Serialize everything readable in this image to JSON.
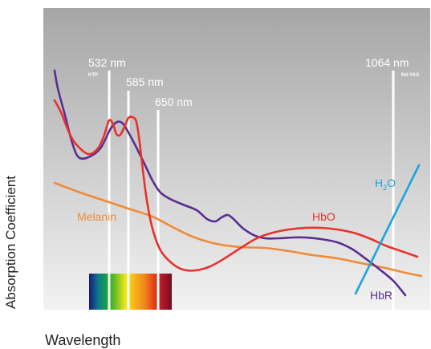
{
  "chart_data": {
    "type": "line",
    "xlabel": "Wavelength",
    "ylabel": "Absorption Coefficient",
    "axes": {
      "x_ticks": "none",
      "y_ticks": "none",
      "grid": false
    },
    "colors": {
      "background_top": "#a6a6a6",
      "background_bottom": "#f2f2f2",
      "HbO": "#e8312b",
      "HbR": "#5b2d91",
      "Melanin": "#f08a35",
      "H2O": "#1aa5dc",
      "laser_line": "#ffffff",
      "laser_label": "#ffffff"
    },
    "lasers": [
      {
        "label": "532 nm",
        "sublabel": "KTP"
      },
      {
        "label": "585 nm",
        "sublabel": ""
      },
      {
        "label": "650 nm",
        "sublabel": ""
      },
      {
        "label": "1064 nm",
        "sublabel": "Nd:YAG"
      }
    ],
    "series": [
      {
        "name": "HbR",
        "color": "#5b2d91",
        "points": [
          [
            68,
            88
          ],
          [
            72,
            110
          ],
          [
            80,
            140
          ],
          [
            90,
            178
          ],
          [
            98,
            196
          ],
          [
            110,
            196
          ],
          [
            125,
            185
          ],
          [
            138,
            160
          ],
          [
            146,
            152
          ],
          [
            153,
            154
          ],
          [
            160,
            165
          ],
          [
            168,
            180
          ],
          [
            178,
            200
          ],
          [
            190,
            225
          ],
          [
            200,
            240
          ],
          [
            212,
            248
          ],
          [
            228,
            255
          ],
          [
            245,
            262
          ],
          [
            258,
            273
          ],
          [
            268,
            276
          ],
          [
            276,
            271
          ],
          [
            284,
            268
          ],
          [
            292,
            274
          ],
          [
            302,
            284
          ],
          [
            316,
            293
          ],
          [
            330,
            297
          ],
          [
            348,
            297
          ],
          [
            365,
            296
          ],
          [
            380,
            296
          ],
          [
            400,
            298
          ],
          [
            420,
            302
          ],
          [
            438,
            310
          ],
          [
            455,
            322
          ],
          [
            472,
            335
          ],
          [
            490,
            350
          ],
          [
            505,
            368
          ]
        ]
      },
      {
        "name": "HbO",
        "color": "#e8312b",
        "points": [
          [
            68,
            125
          ],
          [
            76,
            140
          ],
          [
            86,
            165
          ],
          [
            95,
            180
          ],
          [
            110,
            192
          ],
          [
            122,
            185
          ],
          [
            130,
            168
          ],
          [
            136,
            150
          ],
          [
            141,
            155
          ],
          [
            145,
            167
          ],
          [
            150,
            168
          ],
          [
            156,
            156
          ],
          [
            160,
            147
          ],
          [
            165,
            146
          ],
          [
            170,
            152
          ],
          [
            174,
            178
          ],
          [
            178,
            212
          ],
          [
            183,
            250
          ],
          [
            190,
            285
          ],
          [
            200,
            312
          ],
          [
            214,
            328
          ],
          [
            228,
            336
          ],
          [
            244,
            337
          ],
          [
            262,
            332
          ],
          [
            280,
            322
          ],
          [
            300,
            309
          ],
          [
            320,
            297
          ],
          [
            340,
            290
          ],
          [
            360,
            286
          ],
          [
            380,
            284
          ],
          [
            400,
            284
          ],
          [
            420,
            286
          ],
          [
            440,
            290
          ],
          [
            460,
            297
          ],
          [
            480,
            306
          ],
          [
            500,
            313
          ],
          [
            520,
            320
          ]
        ]
      },
      {
        "name": "Melanin",
        "color": "#f08a35",
        "points": [
          [
            68,
            228
          ],
          [
            100,
            240
          ],
          [
            130,
            250
          ],
          [
            160,
            260
          ],
          [
            190,
            270
          ],
          [
            215,
            283
          ],
          [
            240,
            295
          ],
          [
            270,
            304
          ],
          [
            300,
            308
          ],
          [
            330,
            309
          ],
          [
            360,
            313
          ],
          [
            390,
            318
          ],
          [
            420,
            322
          ],
          [
            450,
            328
          ],
          [
            480,
            334
          ],
          [
            505,
            340
          ],
          [
            525,
            344
          ]
        ]
      },
      {
        "name": "H2O",
        "color": "#1aa5dc",
        "points": [
          [
            443,
            366
          ],
          [
            522,
            206
          ]
        ]
      }
    ],
    "series_labels": [
      {
        "text": "Melanin",
        "color": "#f08a35"
      },
      {
        "text": "HbO",
        "color": "#e8312b"
      },
      {
        "text": "HbR",
        "color": "#5b2d91"
      },
      {
        "text": "H",
        "sub": "2",
        "tail": "O",
        "color": "#1aa5dc"
      }
    ],
    "spectrum_colors": [
      "#1a1a7a",
      "#0b7a8a",
      "#18a33e",
      "#7cc31e",
      "#f2e71c",
      "#f7b11c",
      "#f08a1a",
      "#e4441a",
      "#b3162a",
      "#6e1020"
    ]
  }
}
